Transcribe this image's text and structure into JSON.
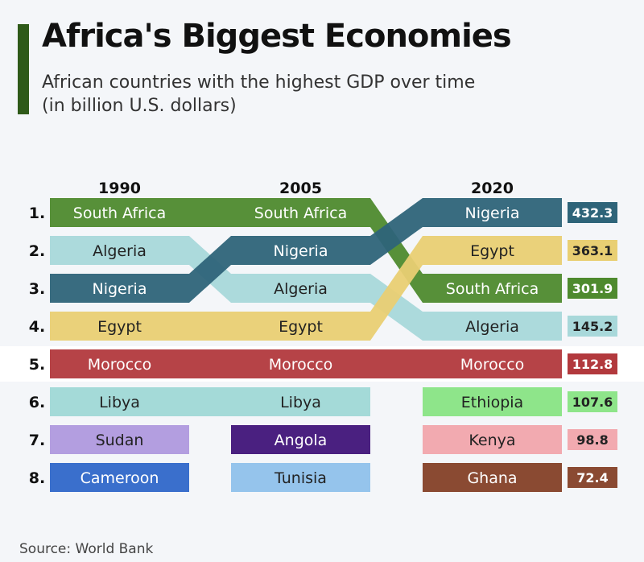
{
  "header": {
    "title": "Africa's Biggest Economies",
    "subtitle_line1": "African countries with the highest GDP over time",
    "subtitle_line2": "(in billion U.S. dollars)"
  },
  "footer": {
    "source": "Source: World Bank"
  },
  "colors": {
    "accent": "#2f5a19",
    "South Africa": "#4e8a2e",
    "Nigeria": "#2e6479",
    "Algeria": "#a8d8da",
    "Egypt": "#e9cf73",
    "Morocco": "#b2393d",
    "Libya": "#a4dad8",
    "Sudan": "#b39ee0",
    "Cameroon": "#3a6fcc",
    "Angola": "#4a2080",
    "Tunisia": "#95c4ec",
    "Ethiopia": "#8ee58a",
    "Kenya": "#f2aab0",
    "Ghana": "#8a4a32"
  },
  "chart_data": {
    "type": "table",
    "years": [
      "1990",
      "2005",
      "2020"
    ],
    "ranks": [
      "1.",
      "2.",
      "3.",
      "4.",
      "5.",
      "6.",
      "7.",
      "8."
    ],
    "rankings": {
      "1990": [
        "South Africa",
        "Algeria",
        "Nigeria",
        "Egypt",
        "Morocco",
        "Libya",
        "Sudan",
        "Cameroon"
      ],
      "2005": [
        "South Africa",
        "Nigeria",
        "Algeria",
        "Egypt",
        "Morocco",
        "Libya",
        "Angola",
        "Tunisia"
      ],
      "2020": [
        "Nigeria",
        "Egypt",
        "South Africa",
        "Algeria",
        "Morocco",
        "Ethiopia",
        "Kenya",
        "Ghana"
      ]
    },
    "gdp_2020": [
      "432.3",
      "363.1",
      "301.9",
      "145.2",
      "112.8",
      "107.6",
      "98.8",
      "72.4"
    ],
    "connected_countries": [
      "South Africa",
      "Nigeria",
      "Algeria",
      "Egypt",
      "Morocco"
    ]
  }
}
